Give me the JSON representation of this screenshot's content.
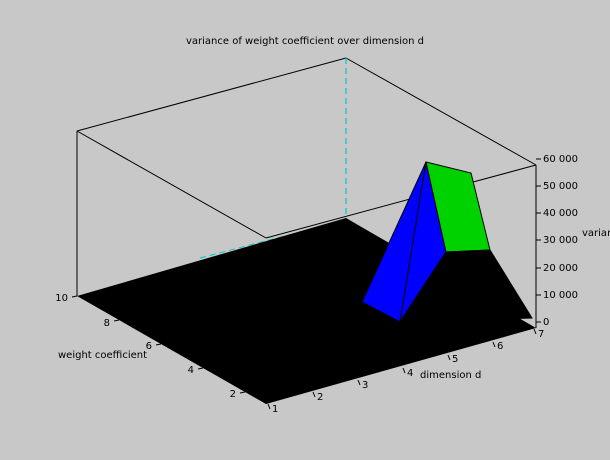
{
  "chart_data": {
    "type": "surface3d",
    "title": "variance of weight coefficient over dimension d",
    "xlabel": "dimension d",
    "ylabel": "weight coefficient",
    "zlabel": "varian",
    "x_ticks": [
      "1",
      "2",
      "3",
      "4",
      "5",
      "6",
      "7"
    ],
    "y_ticks": [
      "2",
      "4",
      "6",
      "8",
      "10"
    ],
    "z_ticks": [
      "0",
      "10 000",
      "20 000",
      "30 000",
      "40 000",
      "50 000",
      "60 000"
    ],
    "xlim": [
      1,
      7
    ],
    "ylim": [
      1,
      10
    ],
    "zlim": [
      0,
      60000
    ],
    "surface_color": "#000000",
    "facet_colors": [
      "#0000ff",
      "#00d200"
    ],
    "notes_visible_values": {
      "peak_variance": 60000,
      "secondary_variance": 28000,
      "low_variance": 0
    }
  }
}
